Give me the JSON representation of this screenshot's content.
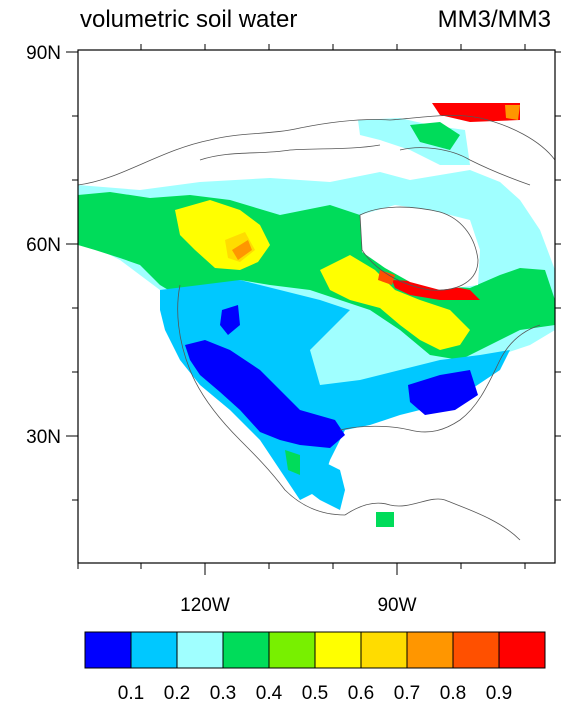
{
  "title_left": "volumetric soil water",
  "title_right": "MM3/MM3",
  "lat_labels": [
    "90N",
    "60N",
    "30N"
  ],
  "lon_labels": [
    "120W",
    "90W"
  ],
  "colorbar": {
    "colors": [
      "#0000ff",
      "#00c8ff",
      "#a0ffff",
      "#00dc5a",
      "#78f000",
      "#ffff00",
      "#ffdc00",
      "#ff9600",
      "#ff5000",
      "#ff0000"
    ],
    "labels": [
      "0.1",
      "0.2",
      "0.3",
      "0.4",
      "0.5",
      "0.6",
      "0.7",
      "0.8",
      "0.9"
    ]
  }
}
